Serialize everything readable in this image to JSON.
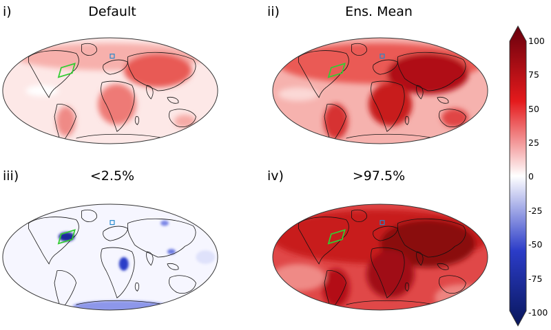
{
  "panels": [
    {
      "label": "i)",
      "title": "Default"
    },
    {
      "label": "ii)",
      "title": "Ens. Mean"
    },
    {
      "label": "iii)",
      "title": "<2.5%"
    },
    {
      "label": "iv)",
      "title": ">97.5%"
    }
  ],
  "colorbar": {
    "ticks": [
      "100",
      "75",
      "50",
      "25",
      "0",
      "-25",
      "-50",
      "-75",
      "-100"
    ],
    "colors": {
      "max": "#67000d",
      "high": "#e41a1c",
      "mid": "#ffffff",
      "low": "#2b3cc8",
      "min": "#08165a"
    }
  },
  "colors": {
    "region_box": "#33cc33",
    "small_box": "#2288cc",
    "coast": "#111111",
    "default_fill": "#f7c4c2",
    "ensmean_fill": "#f08a86",
    "low_fill": "#f3f3ff",
    "high_fill": "#d63030"
  }
}
